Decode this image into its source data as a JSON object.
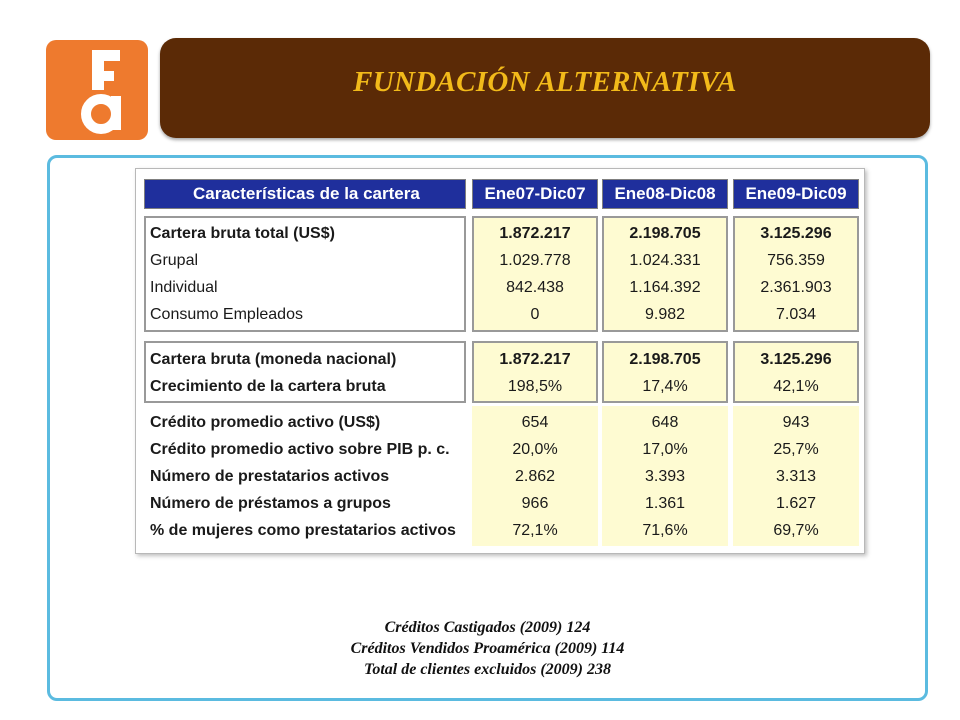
{
  "logo": {
    "alt_text": "Fa",
    "color": "#ee7a2e"
  },
  "banner": {
    "title": "FUNDACIÓN ALTERNATIVA",
    "bg_color": "#5b2a06",
    "title_color": "#f2ba1a"
  },
  "table": {
    "header": {
      "label": "Características de la cartera",
      "columns": [
        "Ene07-Dic07",
        "Ene08-Dic08",
        "Ene09-Dic09"
      ]
    },
    "group1": [
      {
        "label": "Cartera bruta total (US$)",
        "bold": true,
        "values": [
          "1.872.217",
          "2.198.705",
          "3.125.296"
        ]
      },
      {
        "label": "Grupal",
        "bold": false,
        "values": [
          "1.029.778",
          "1.024.331",
          "756.359"
        ]
      },
      {
        "label": "Individual",
        "bold": false,
        "values": [
          "842.438",
          "1.164.392",
          "2.361.903"
        ]
      },
      {
        "label": "Consumo Empleados",
        "bold": false,
        "values": [
          "0",
          "9.982",
          "7.034"
        ]
      }
    ],
    "group2": [
      {
        "label": "Cartera bruta (moneda nacional)",
        "bold": true,
        "values": [
          "1.872.217",
          "2.198.705",
          "3.125.296"
        ]
      },
      {
        "label": "Crecimiento de la cartera bruta",
        "bold": true,
        "values": [
          "198,5%",
          "17,4%",
          "42,1%"
        ]
      }
    ],
    "group3": [
      {
        "label": "Crédito promedio activo (US$)",
        "values": [
          "654",
          "648",
          "943"
        ]
      },
      {
        "label": "Crédito promedio activo sobre PIB p. c.",
        "values": [
          "20,0%",
          "17,0%",
          "25,7%"
        ]
      },
      {
        "label": "Número de prestatarios activos",
        "values": [
          "2.862",
          "3.393",
          "3.313"
        ]
      },
      {
        "label": "Número de préstamos a grupos",
        "values": [
          "966",
          "1.361",
          "1.627"
        ]
      },
      {
        "label": "% de  mujeres como prestatarios activos",
        "values": [
          "72,1%",
          "71,6%",
          "69,7%"
        ]
      }
    ],
    "header_color": "#1f2f9c",
    "value_bg_color": "#fefbd2"
  },
  "notes": [
    "Créditos Castigados  (2009) 124",
    "Créditos Vendidos Proamérica  (2009) 114",
    "Total de clientes excluidos  (2009)  238"
  ],
  "panel_border_color": "#5bbbe0"
}
